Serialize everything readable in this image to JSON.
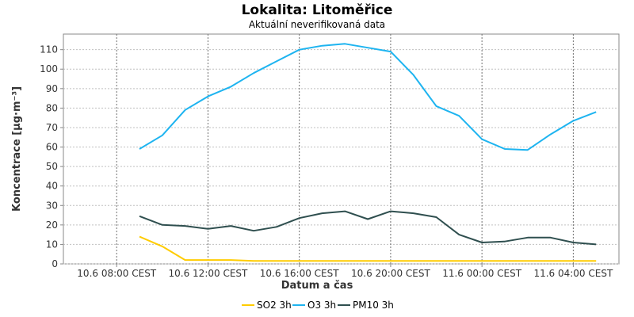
{
  "chart_data": {
    "type": "line",
    "title": "Lokalita: Litoměřice",
    "subtitle": "Aktuální neverifikovaná data",
    "xlabel": "Datum a čas",
    "ylabel": "Koncentrace [µg·m⁻³]",
    "ylim": [
      0,
      118
    ],
    "yticks": [
      0,
      10,
      20,
      30,
      40,
      50,
      60,
      70,
      80,
      90,
      100,
      110
    ],
    "xlim": [
      "10.6 05:40",
      "11.6 06:00"
    ],
    "xticks": [
      {
        "time": "10.6 08:00",
        "label": "10.6 08:00 CEST"
      },
      {
        "time": "10.6 12:00",
        "label": "10.6 12:00 CEST"
      },
      {
        "time": "10.6 16:00",
        "label": "10.6 16:00 CEST"
      },
      {
        "time": "10.6 20:00",
        "label": "10.6 20:00 CEST"
      },
      {
        "time": "11.6 00:00",
        "label": "11.6 00:00 CEST"
      },
      {
        "time": "11.6 04:00",
        "label": "11.6 04:00 CEST"
      }
    ],
    "grid": true,
    "legend_position": "bottom",
    "x": [
      "10.6 09:00",
      "10.6 10:00",
      "10.6 11:00",
      "10.6 12:00",
      "10.6 13:00",
      "10.6 14:00",
      "10.6 15:00",
      "10.6 16:00",
      "10.6 17:00",
      "10.6 18:00",
      "10.6 19:00",
      "10.6 20:00",
      "10.6 21:00",
      "10.6 22:00",
      "10.6 23:00",
      "11.6 00:00",
      "11.6 01:00",
      "11.6 02:00",
      "11.6 03:00",
      "11.6 04:00",
      "11.6 05:00"
    ],
    "series": [
      {
        "name": "SO2 3h",
        "color": "#FFCC00",
        "values": [
          14,
          9,
          2,
          2,
          2,
          1.5,
          1.5,
          1.5,
          1.5,
          1.5,
          1.5,
          1.5,
          1.5,
          1.5,
          1.5,
          1.5,
          1.5,
          1.5,
          1.5,
          1.5,
          1.5
        ]
      },
      {
        "name": "O3 3h",
        "color": "#1EB4F0",
        "values": [
          59,
          66,
          79,
          86,
          91,
          98,
          104,
          110,
          112,
          113,
          111,
          109,
          97,
          81,
          76,
          64,
          59,
          58.5,
          66.5,
          73.5,
          78
        ]
      },
      {
        "name": "PM10 3h",
        "color": "#2F4F4F",
        "values": [
          24.5,
          20,
          19.5,
          18,
          19.5,
          17,
          19,
          23.5,
          26,
          27,
          23,
          27,
          26,
          24,
          15,
          11,
          11.5,
          13.5,
          13.5,
          11,
          10
        ]
      }
    ]
  }
}
